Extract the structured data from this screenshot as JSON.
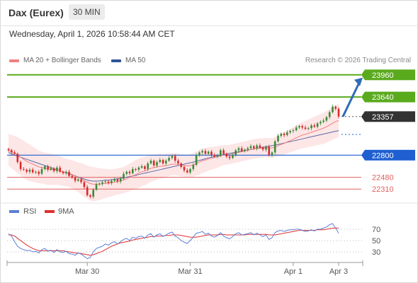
{
  "header": {
    "instrument": "Dax (Eurex)",
    "timeframe": "30 MIN",
    "datetime": "Wednesday, April 1, 2026 10:58:44 AM CET"
  },
  "legend": {
    "ma20_label": "MA 20 + Bollinger Bands",
    "ma50_label": "MA 50",
    "credit": "Research © 2026 Trading Central"
  },
  "rsi_legend": {
    "rsi_label": "RSI",
    "ma_label": "9MA"
  },
  "colors": {
    "candle_up": "#3a8a3a",
    "candle_down": "#d92b2b",
    "ma20": "#f08080",
    "bollinger_fill": "#fde3e3",
    "ma50": "#5a6aa8",
    "resistance": "#5aaa1e",
    "pivot": "#1f5fd1",
    "support": "#e06060",
    "current_price_bg": "#333333",
    "arrow": "#2f6cb5",
    "rsi": "#5b7fd6",
    "rsi_ma": "#e03030"
  },
  "chart_data": {
    "type": "candlestick",
    "title": "Dax (Eurex)",
    "timeframe": "30 MIN",
    "ylim": [
      22200,
      24050
    ],
    "x_ticks": [
      "Mar 30",
      "Mar 31",
      "Apr 1",
      "Apr 3"
    ],
    "x_tick_index": [
      26,
      60,
      94,
      109
    ],
    "levels": [
      {
        "label": "23960",
        "value": 23960,
        "kind": "resistance"
      },
      {
        "label": "23640",
        "value": 23640,
        "kind": "resistance"
      },
      {
        "label": "23357",
        "value": 23357,
        "kind": "current"
      },
      {
        "label": "22800",
        "value": 22800,
        "kind": "pivot"
      },
      {
        "label": "22480",
        "value": 22480,
        "kind": "support"
      },
      {
        "label": "22310",
        "value": 22310,
        "kind": "support"
      }
    ],
    "close": [
      22870,
      22840,
      22820,
      22700,
      22600,
      22590,
      22560,
      22590,
      22550,
      22560,
      22530,
      22600,
      22640,
      22590,
      22610,
      22570,
      22620,
      22560,
      22540,
      22560,
      22500,
      22480,
      22430,
      22450,
      22410,
      22340,
      22220,
      22200,
      22300,
      22380,
      22390,
      22410,
      22420,
      22400,
      22430,
      22450,
      22420,
      22460,
      22530,
      22560,
      22540,
      22600,
      22590,
      22620,
      22640,
      22600,
      22680,
      22720,
      22650,
      22700,
      22730,
      22680,
      22720,
      22760,
      22790,
      22720,
      22680,
      22630,
      22580,
      22550,
      22600,
      22660,
      22800,
      22840,
      22860,
      22820,
      22850,
      22800,
      22780,
      22800,
      22870,
      22820,
      22780,
      22760,
      22800,
      22870,
      22900,
      22860,
      22880,
      22900,
      22930,
      22900,
      22940,
      22910,
      22880,
      22920,
      22800,
      22840,
      23000,
      23080,
      23110,
      23090,
      23130,
      23150,
      23160,
      23200,
      23220,
      23200,
      23180,
      23190,
      23230,
      23210,
      23260,
      23280,
      23300,
      23350,
      23420,
      23500,
      23470,
      23357
    ],
    "ma20": [
      22880,
      22850,
      22830,
      22800,
      22770,
      22740,
      22710,
      22690,
      22670,
      22650,
      22630,
      22620,
      22610,
      22600,
      22595,
      22590,
      22585,
      22575,
      22560,
      22550,
      22540,
      22520,
      22500,
      22480,
      22460,
      22430,
      22410,
      22390,
      22380,
      22380,
      22380,
      22385,
      22390,
      22395,
      22400,
      22410,
      22420,
      22430,
      22440,
      22460,
      22480,
      22500,
      22520,
      22540,
      22560,
      22570,
      22590,
      22610,
      22620,
      22630,
      22640,
      22640,
      22650,
      22660,
      22670,
      22670,
      22665,
      22655,
      22650,
      22645,
      22650,
      22660,
      22680,
      22700,
      22720,
      22730,
      22745,
      22755,
      22765,
      22775,
      22790,
      22800,
      22805,
      22810,
      22820,
      22830,
      22840,
      22850,
      22860,
      22870,
      22880,
      22890,
      22895,
      22900,
      22905,
      22910,
      22905,
      22905,
      22915,
      22935,
      22955,
      22970,
      22990,
      23010,
      23030,
      23050,
      23070,
      23090,
      23100,
      23115,
      23130,
      23145,
      23160,
      23175,
      23190,
      23210,
      23235,
      23260,
      23285,
      23300
    ],
    "ma50": [
      22840,
      22820,
      22800,
      22785,
      22770,
      22755,
      22740,
      22725,
      22710,
      22695,
      22680,
      22665,
      22650,
      22635,
      22620,
      22605,
      22590,
      22575,
      22560,
      22545,
      22530,
      22515,
      22500,
      22485,
      22470,
      22455,
      22440,
      22430,
      22425,
      22425,
      22428,
      22432,
      22436,
      22440,
      22445,
      22450,
      22458,
      22466,
      22474,
      22482,
      22490,
      22500,
      22510,
      22520,
      22530,
      22540,
      22550,
      22560,
      22570,
      22580,
      22590,
      22600,
      22610,
      22620,
      22630,
      22640,
      22650,
      22660,
      22670,
      22680,
      22690,
      22700,
      22712,
      22724,
      22736,
      22748,
      22760,
      22770,
      22780,
      22790,
      22800,
      22810,
      22818,
      22826,
      22834,
      22842,
      22850,
      22858,
      22866,
      22874,
      22882,
      22890,
      22898,
      22906,
      22914,
      22922,
      22930,
      22938,
      22946,
      22955,
      22965,
      22975,
      22985,
      22995,
      23005,
      23015,
      23025,
      23035,
      23045,
      23055,
      23065,
      23075,
      23085,
      23095,
      23105,
      23115,
      23125,
      23135,
      23145,
      23155
    ],
    "bb_width": [
      230,
      240,
      250,
      260,
      265,
      270,
      270,
      265,
      255,
      245,
      235,
      230,
      230,
      230,
      225,
      220,
      215,
      210,
      205,
      200,
      200,
      205,
      210,
      215,
      225,
      235,
      240,
      245,
      245,
      240,
      230,
      220,
      210,
      200,
      195,
      190,
      190,
      190,
      190,
      195,
      200,
      205,
      210,
      210,
      210,
      205,
      200,
      195,
      190,
      185,
      180,
      175,
      170,
      165,
      160,
      160,
      160,
      160,
      160,
      160,
      165,
      170,
      175,
      180,
      180,
      175,
      170,
      165,
      160,
      155,
      150,
      145,
      140,
      140,
      140,
      140,
      140,
      140,
      140,
      140,
      140,
      140,
      140,
      140,
      140,
      140,
      140,
      140,
      145,
      150,
      155,
      160,
      165,
      170,
      175,
      180,
      185,
      190,
      195,
      200,
      205,
      210,
      215,
      220,
      225,
      230,
      235,
      240,
      240,
      240
    ],
    "rsi": {
      "ylim": [
        15,
        85
      ],
      "y_ticks": [
        70,
        50,
        30
      ],
      "rsi": [
        62,
        58,
        48,
        40,
        36,
        34,
        32,
        33,
        30,
        31,
        28,
        34,
        36,
        31,
        33,
        29,
        34,
        30,
        29,
        31,
        27,
        26,
        24,
        28,
        26,
        22,
        18,
        20,
        30,
        36,
        38,
        40,
        44,
        42,
        46,
        48,
        44,
        48,
        52,
        54,
        50,
        56,
        54,
        57,
        58,
        54,
        60,
        62,
        56,
        60,
        62,
        57,
        60,
        63,
        65,
        58,
        55,
        50,
        47,
        45,
        50,
        56,
        63,
        64,
        66,
        61,
        63,
        58,
        56,
        59,
        64,
        58,
        55,
        53,
        57,
        62,
        64,
        60,
        61,
        62,
        64,
        60,
        63,
        60,
        57,
        60,
        52,
        55,
        64,
        67,
        68,
        66,
        68,
        69,
        69,
        70,
        70,
        68,
        66,
        67,
        69,
        67,
        70,
        70,
        72,
        74,
        78,
        80,
        72,
        63
      ],
      "ma9": [
        60,
        60,
        58,
        54,
        50,
        46,
        42,
        39,
        36,
        34,
        32,
        32,
        32,
        32,
        32,
        32,
        32,
        32,
        32,
        31,
        30,
        29,
        28,
        28,
        27,
        26,
        25,
        24,
        25,
        27,
        29,
        31,
        34,
        37,
        40,
        42,
        44,
        46,
        47,
        48,
        49,
        51,
        52,
        53,
        54,
        55,
        56,
        57,
        57,
        58,
        58,
        58,
        59,
        59,
        60,
        60,
        60,
        59,
        58,
        57,
        56,
        56,
        56,
        57,
        58,
        59,
        60,
        60,
        60,
        60,
        61,
        61,
        60,
        60,
        60,
        60,
        60,
        60,
        60,
        61,
        61,
        61,
        61,
        61,
        61,
        61,
        60,
        60,
        60,
        61,
        62,
        63,
        64,
        65,
        66,
        67,
        68,
        68,
        68,
        68,
        68,
        68,
        69,
        69,
        69,
        70,
        71,
        72,
        72,
        72
      ]
    }
  }
}
